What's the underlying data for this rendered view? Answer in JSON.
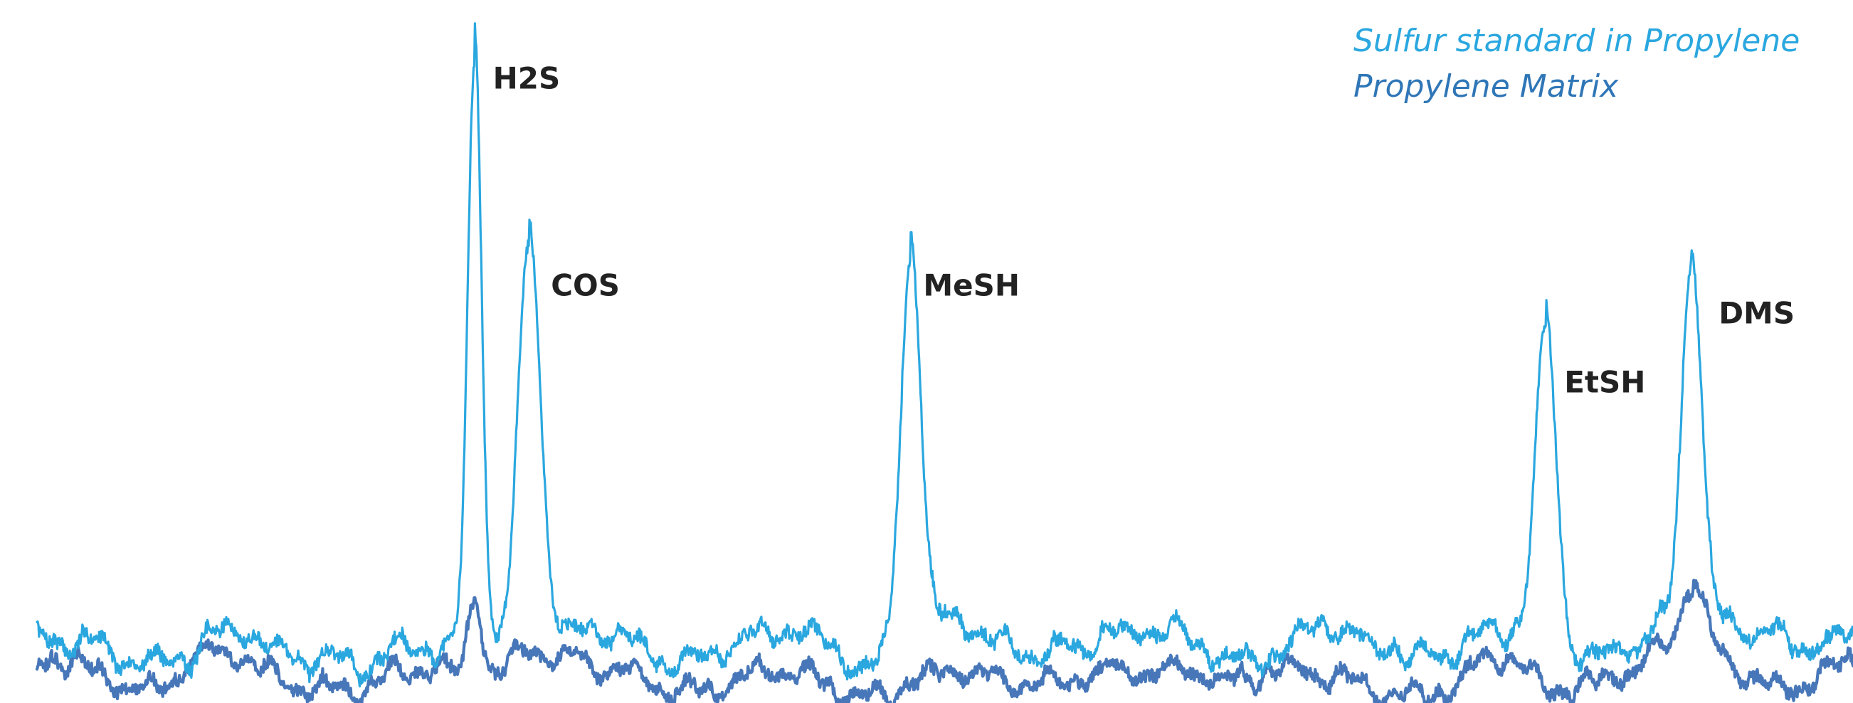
{
  "chart_data": {
    "type": "line",
    "title": "",
    "xlabel": "",
    "ylabel": "",
    "xlim": [
      0,
      100
    ],
    "ylim": [
      0,
      100
    ],
    "grid": false,
    "axes_visible": false,
    "legend_position": "top-right",
    "series": [
      {
        "name": "Sulfur standard in Propylene",
        "color": "#2aa7df",
        "baseline": 8,
        "noise": 2.2,
        "peaks": [
          {
            "label": "H2S",
            "x": 24.1,
            "height": 86,
            "width": 0.38
          },
          {
            "label": "COS",
            "x": 27.1,
            "height": 58,
            "width": 0.6
          },
          {
            "label": "MeSH",
            "x": 48.1,
            "height": 58,
            "width": 0.55
          },
          {
            "label": "EtSH",
            "x": 83.1,
            "height": 44,
            "width": 0.55
          },
          {
            "label": "DMS",
            "x": 91.1,
            "height": 54,
            "width": 0.55
          }
        ]
      },
      {
        "name": "Propylene Matrix",
        "color": "#4777b9",
        "baseline": 3.5,
        "noise": 2.0,
        "peaks": [
          {
            "label": "",
            "x": 24.1,
            "height": 12,
            "width": 0.4
          },
          {
            "label": "",
            "x": 26.8,
            "height": 5,
            "width": 1.0
          },
          {
            "label": "",
            "x": 91.2,
            "height": 10,
            "width": 0.7
          }
        ]
      }
    ],
    "peak_labels": [
      {
        "text": "H2S",
        "x": 25.1,
        "y": 89
      },
      {
        "text": "COS",
        "x": 28.3,
        "y": 59
      },
      {
        "text": "MeSH",
        "x": 48.8,
        "y": 59
      },
      {
        "text": "EtSH",
        "x": 84.1,
        "y": 45
      },
      {
        "text": "DMS",
        "x": 92.6,
        "y": 55
      }
    ]
  },
  "legend": [
    {
      "label": "Sulfur standard in Propylene",
      "color": "#2aa7df"
    },
    {
      "label": "Propylene Matrix",
      "color": "#2f76b7"
    }
  ]
}
